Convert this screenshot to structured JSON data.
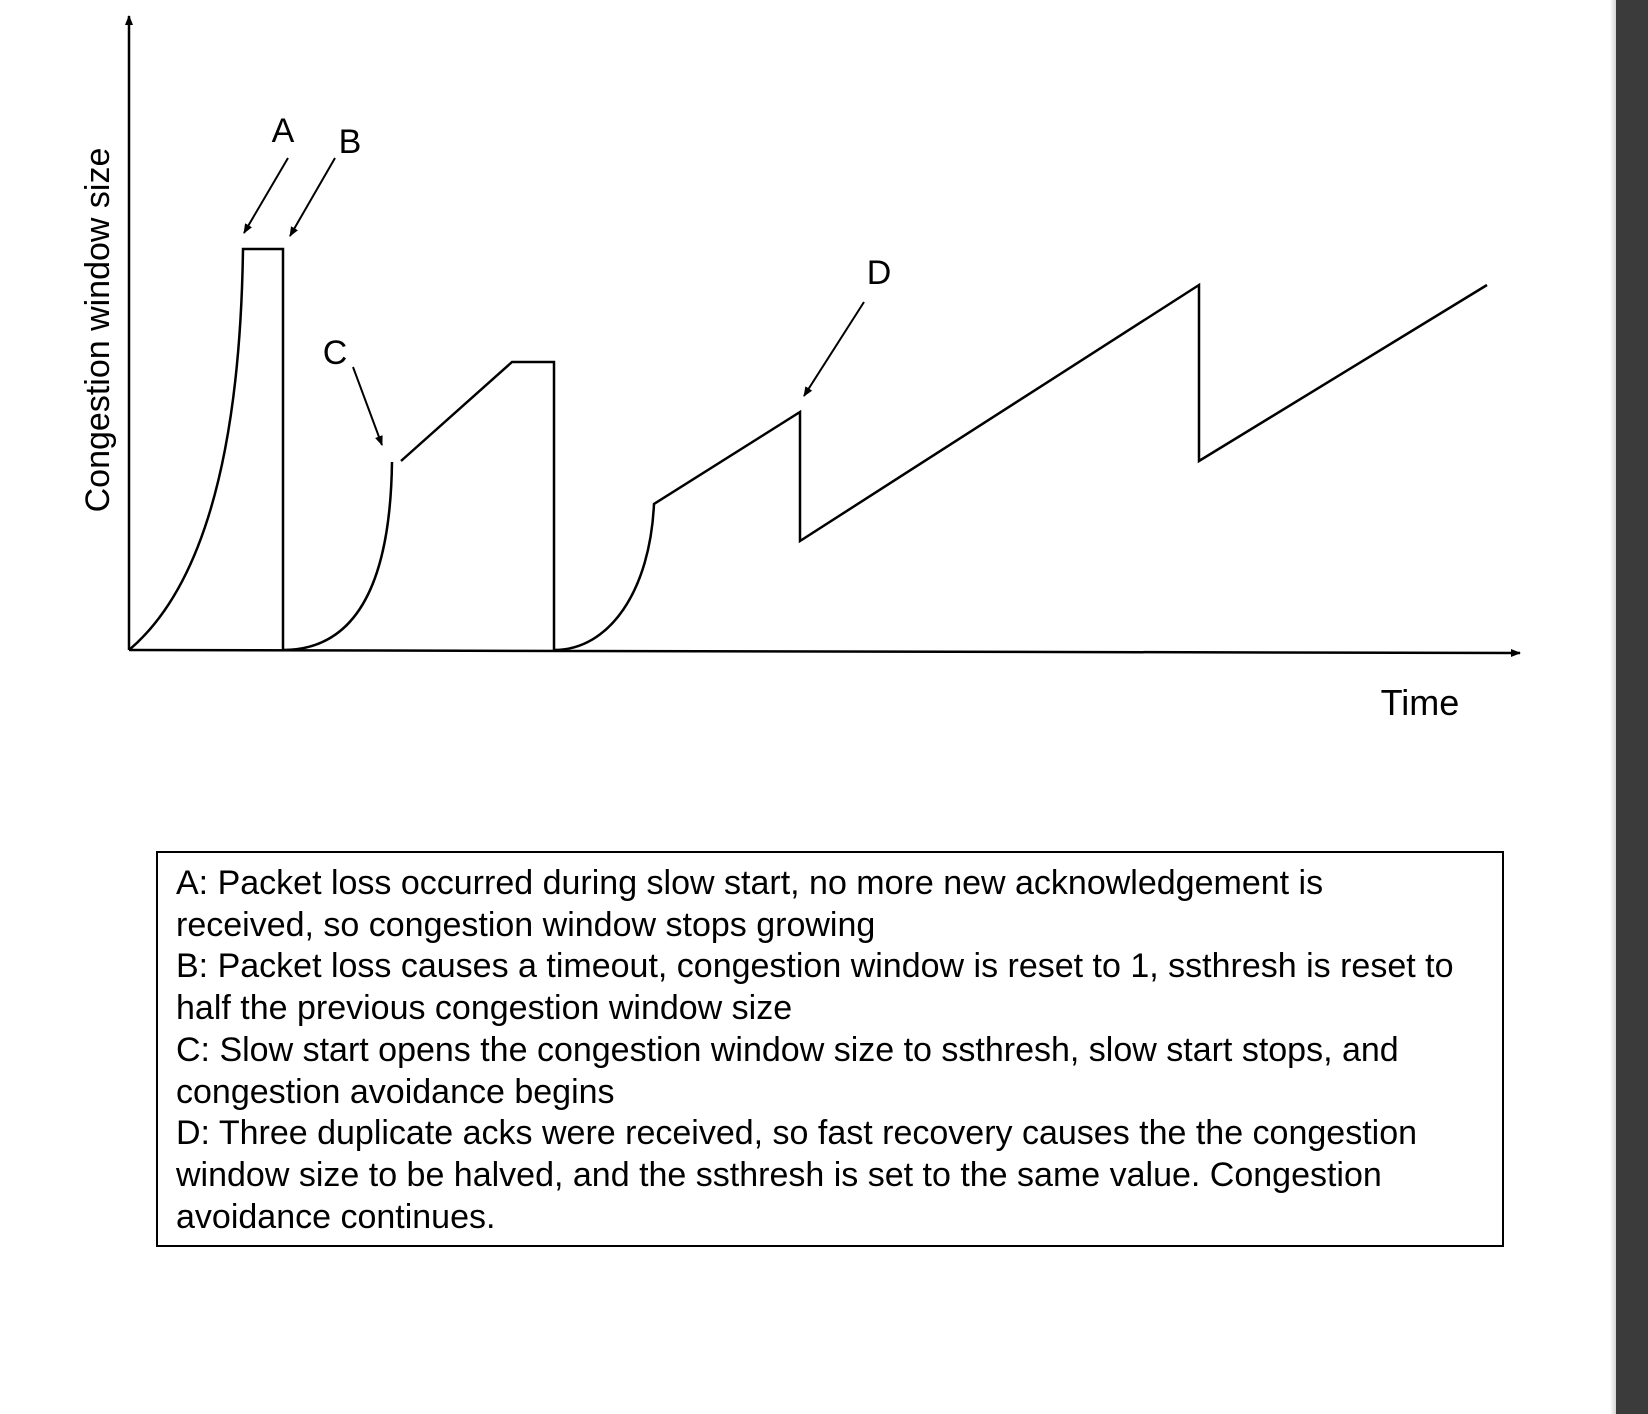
{
  "diagram": {
    "y_axis_label": "Congestion window size",
    "x_axis_label": "Time",
    "annotations": [
      "A",
      "B",
      "C",
      "D"
    ],
    "stroke_color": "#000000"
  },
  "legend": {
    "lines": [
      "A: Packet loss occurred during slow start, no more new acknowledgement is",
      "received, so congestion window stops growing",
      "B: Packet loss causes a timeout, congestion window is reset to 1, ssthresh is reset to",
      "half the previous congestion window size",
      "C: Slow start opens the congestion window size to ssthresh, slow start stops, and",
      "congestion avoidance begins",
      "D: Three duplicate acks were received, so fast recovery causes the the congestion",
      "window size to be halved, and the ssthresh is set to the same value. Congestion",
      "avoidance continues."
    ]
  }
}
